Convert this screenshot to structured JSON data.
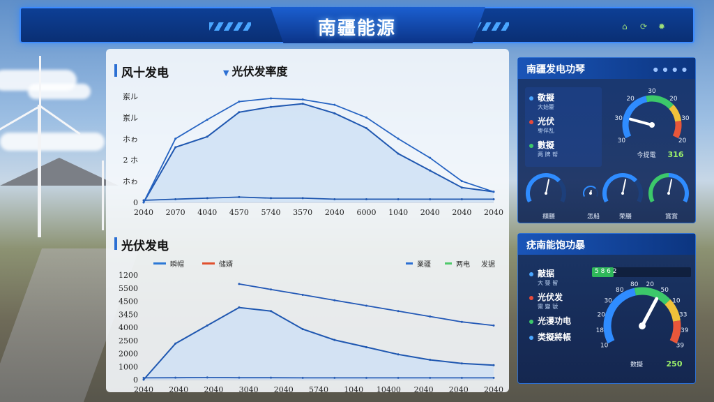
{
  "header": {
    "title": "南疆能源"
  },
  "top_chart": {
    "title": "风十发电",
    "series_label": "光伏发率度",
    "y_ticks": [
      "岽ル",
      "岽ル",
      "ホゎ",
      "2 ホ",
      "ホゎ",
      "0"
    ],
    "x_ticks": [
      "2040",
      "2070",
      "4040",
      "4570",
      "5740",
      "3570",
      "2040",
      "6000",
      "1040",
      "2040",
      "2040",
      "2040"
    ],
    "colors": {
      "line": "#1f57b0",
      "fill": "#c9dbf2",
      "light": "#a9cdee"
    }
  },
  "chart_data": [
    {
      "type": "line",
      "title": "风十发电",
      "x": [
        0,
        1,
        2,
        3,
        4,
        5,
        6,
        7,
        8,
        9,
        10,
        11
      ],
      "series": [
        {
          "name": "光伏发率度",
          "values": [
            0.0,
            0.52,
            0.62,
            0.85,
            0.9,
            0.93,
            0.84,
            0.7,
            0.46,
            0.3,
            0.14,
            0.1
          ]
        },
        {
          "values": [
            0.02,
            0.03,
            0.04,
            0.05,
            0.04,
            0.04,
            0.03,
            0.03,
            0.03,
            0.03,
            0.03,
            0.03
          ]
        },
        {
          "values": [
            0.0,
            0.6,
            0.78,
            0.95,
            0.98,
            0.97,
            0.92,
            0.8,
            0.6,
            0.42,
            0.2,
            0.1
          ]
        }
      ]
    },
    {
      "type": "line",
      "title": "光伏发电",
      "x": [
        0,
        1,
        2,
        3,
        4,
        5,
        6,
        7,
        8,
        9,
        10,
        11
      ],
      "series": [
        {
          "name": "瞬帽",
          "values": [
            0,
            2000,
            3000,
            4000,
            3800,
            2800,
            2200,
            1800,
            1400,
            1100,
            900,
            800
          ]
        },
        {
          "name": "储婿",
          "values": [
            100,
            110,
            120,
            110,
            110,
            100,
            100,
            100,
            100,
            100,
            100,
            100
          ]
        },
        {
          "values": [
            null,
            null,
            null,
            5300,
            5000,
            4700,
            4400,
            4100,
            3800,
            3500,
            3200,
            3000
          ]
        }
      ]
    }
  ],
  "bottom_chart": {
    "title": "光伏发电",
    "y_ticks": [
      "1200",
      "5500",
      "4500",
      "3450",
      "4000",
      "2500",
      "2000",
      "1000",
      "0"
    ],
    "x_ticks": [
      "2040",
      "2040",
      "2040",
      "3040",
      "2040",
      "5740",
      "1040",
      "10400",
      "2040",
      "2040",
      "2040"
    ],
    "legend_left": [
      {
        "label": "瞬帽",
        "color": "#2b78d6"
      },
      {
        "label": "储婿",
        "color": "#e0502e"
      }
    ],
    "legend_right": [
      {
        "label": "業疆",
        "color": "#2b6fd3"
      },
      {
        "label": "两电",
        "color": "#4ec96a"
      },
      {
        "label": "发据",
        "color": "#555555"
      }
    ]
  },
  "right_top": {
    "title": "南疆发电功琴",
    "items": [
      {
        "label": "敬擬",
        "sub": "大始籗",
        "color": "#4aa6ff"
      },
      {
        "label": "光伏",
        "sub": "枣伴乱",
        "color": "#e84a3a"
      },
      {
        "label": "數擬",
        "sub": "两 牌 帮",
        "color": "#3cc86a"
      }
    ],
    "gauge": {
      "ticks": [
        "30",
        "30",
        "20",
        "30",
        "20",
        "30",
        "20"
      ],
      "label": "今提電",
      "value": "316",
      "level": 0.18
    },
    "mini_gauges": [
      {
        "label": "頫膳"
      },
      {
        "label": "怎船"
      },
      {
        "label": "荣膳"
      },
      {
        "label": "賞賞"
      }
    ]
  },
  "right_bottom": {
    "title": "疣南能饱功暴",
    "bar": {
      "text": "5 8 6 2",
      "level": 0.22
    },
    "items": [
      {
        "label": "敲据",
        "sub": "大 娶 留",
        "color": "#4aa6ff"
      },
      {
        "label": "光伏发",
        "sub": "需 變 號",
        "color": "#e84a3a"
      },
      {
        "label": "光漫功电",
        "sub": "",
        "color": "#3cc86a"
      },
      {
        "label": "类擬將帳",
        "sub": "",
        "color": "#4aa6ff"
      }
    ],
    "gauge": {
      "ticks": [
        "10",
        "18",
        "20",
        "30",
        "80",
        "80",
        "20",
        "50",
        "10",
        "33",
        "39",
        "39"
      ],
      "label": "数擬",
      "value": "250",
      "level": 0.62
    }
  }
}
